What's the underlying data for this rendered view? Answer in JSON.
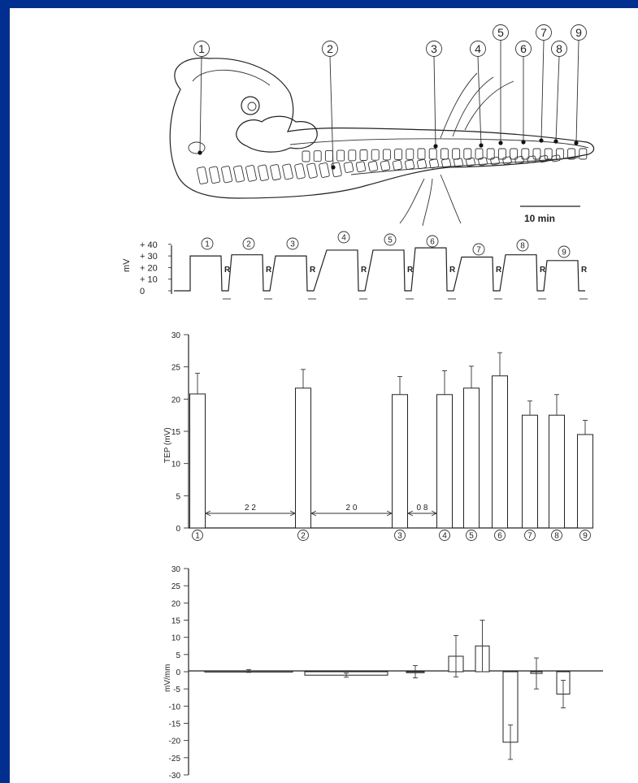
{
  "embryo": {
    "sites": [
      "1",
      "2",
      "3",
      "4",
      "5",
      "6",
      "7",
      "8",
      "9"
    ],
    "scale_label": "10 min"
  },
  "trace": {
    "y_unit": "mV",
    "y_ticks": [
      "+ 40",
      "+ 30",
      "+ 20",
      "+ 10",
      "0"
    ],
    "site_labels": [
      "1",
      "2",
      "3",
      "4",
      "5",
      "6",
      "7",
      "8",
      "9"
    ],
    "ref_label": "R",
    "plateau_mv": [
      30,
      31,
      30,
      35,
      35,
      37,
      29,
      31,
      26
    ]
  },
  "chart_data": [
    {
      "type": "bar",
      "ylabel": "TEP (mV)",
      "ylim": [
        0,
        30
      ],
      "yticks": [
        0,
        5,
        10,
        15,
        20,
        25,
        30
      ],
      "categories": [
        "1",
        "2",
        "3",
        "4",
        "5",
        "6",
        "7",
        "8",
        "9"
      ],
      "values": [
        20.8,
        21.7,
        20.7,
        20.7,
        21.7,
        23.6,
        17.5,
        17.5,
        14.5
      ],
      "errors": [
        3.2,
        2.9,
        2.8,
        3.7,
        3.4,
        3.6,
        2.2,
        3.2,
        2.2
      ],
      "spans": [
        {
          "label": "2 2"
        },
        {
          "label": "2 0"
        },
        {
          "label": "0 8"
        }
      ]
    },
    {
      "type": "bar",
      "ylabel": "mV/mm",
      "ylim": [
        -30,
        30
      ],
      "yticks": [
        -30,
        -25,
        -20,
        -15,
        -10,
        -5,
        0,
        5,
        10,
        15,
        20,
        25,
        30
      ],
      "values": [
        0.2,
        -1.0,
        0.0,
        4.5,
        7.5,
        -20.5,
        -0.5,
        -6.5
      ],
      "errors": [
        0.4,
        0.6,
        1.8,
        6.0,
        7.5,
        5.0,
        4.5,
        4.0
      ]
    }
  ]
}
